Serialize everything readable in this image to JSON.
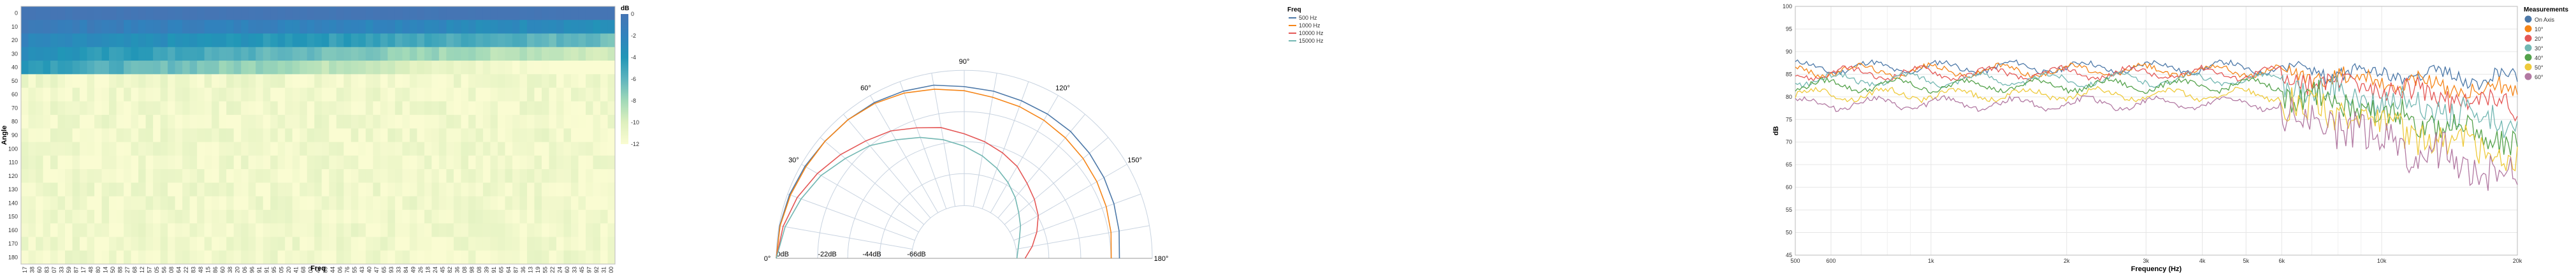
{
  "heatmap": {
    "type": "heatmap",
    "xlabel": "Freq",
    "ylabel": "Angle",
    "legend_title": "dB",
    "angles": [
      0,
      10,
      20,
      30,
      40,
      50,
      60,
      70,
      80,
      90,
      100,
      110,
      120,
      130,
      140,
      150,
      160,
      170,
      180
    ],
    "color_scale": {
      "domain": [
        -12,
        0
      ],
      "ticks": [
        0,
        -2,
        -4,
        -6,
        -8,
        -10,
        -12
      ]
    },
    "freqs": [
      "417",
      "438",
      "460",
      "483",
      "507",
      "533",
      "559",
      "587",
      "617",
      "648",
      "680",
      "714",
      "750",
      "788",
      "827",
      "868",
      "912",
      "957",
      "1005",
      "1056",
      "1108",
      "1164",
      "1222",
      "1283",
      "1348",
      "1415",
      "1486",
      "1560",
      "1638",
      "1720",
      "1806",
      "1896",
      "1991",
      "2091",
      "2195",
      "2305",
      "2420",
      "2541",
      "2668",
      "2802",
      "2942",
      "3089",
      "3244",
      "3406",
      "3576",
      "3755",
      "3943",
      "4140",
      "4347",
      "4565",
      "4793",
      "5033",
      "5284",
      "5549",
      "5826",
      "6118",
      "6424",
      "6745",
      "7082",
      "7436",
      "7808",
      "8198",
      "8608",
      "9039",
      "9491",
      "9965",
      "10464",
      "10987",
      "11536",
      "12113",
      "12719",
      "13355",
      "14022",
      "14724",
      "15460",
      "16233",
      "17045",
      "17897",
      "18792",
      "19731",
      "20000"
    ]
  },
  "polar": {
    "type": "polar-line",
    "legend_title": "Freq",
    "angle_labels": [
      "0°",
      "30°",
      "60°",
      "90°",
      "120°",
      "150°",
      "180°"
    ],
    "radius_labels": [
      "0dB",
      "-22dB",
      "-44dB",
      "-66dB"
    ],
    "angles_deg": [
      0,
      10,
      20,
      30,
      40,
      50,
      60,
      70,
      80,
      90,
      100,
      110,
      120,
      130,
      140,
      150,
      160,
      170,
      180
    ],
    "series": [
      {
        "name": "500 Hz",
        "color": "#4c78a8",
        "db": [
          0,
          -0.3,
          -1,
          -2,
          -3,
          -3.5,
          -4,
          -5,
          -6,
          -8,
          -9,
          -10,
          -10.5,
          -11,
          -12,
          -13,
          -14,
          -15,
          -16
        ]
      },
      {
        "name": "1000 Hz",
        "color": "#f58518",
        "db": [
          0,
          -0.5,
          -1.5,
          -2.5,
          -3,
          -3.5,
          -4.5,
          -6,
          -8,
          -10,
          -12,
          -13,
          -14,
          -15,
          -16,
          -17,
          -18,
          -19,
          -20
        ]
      },
      {
        "name": "10000 Hz",
        "color": "#e45756",
        "db": [
          0,
          -2,
          -5,
          -9,
          -13,
          -17,
          -20,
          -24,
          -27,
          -31,
          -34,
          -37,
          -40,
          -44,
          -47,
          -50,
          -54,
          -58,
          -62
        ]
      },
      {
        "name": "15000 Hz",
        "color": "#72b7b2",
        "db": [
          0,
          -3,
          -7,
          -11,
          -16,
          -20,
          -25,
          -29,
          -33,
          -37,
          -41,
          -45,
          -49,
          -53,
          -57,
          -60,
          -63,
          -65,
          -66
        ]
      }
    ]
  },
  "frequency": {
    "type": "line",
    "xlabel": "Frequency (Hz)",
    "ylabel": "dB",
    "xscale": "log",
    "xlim": [
      500,
      20000
    ],
    "ylim": [
      45,
      100
    ],
    "x_ticks": [
      "500",
      "600",
      "1k",
      "2k",
      "3k",
      "4k",
      "5k",
      "6k",
      "10k",
      "20k"
    ],
    "y_ticks": [
      45,
      50,
      55,
      60,
      65,
      70,
      75,
      80,
      85,
      90,
      95,
      100
    ],
    "legend_title": "Measurements",
    "series": [
      {
        "name": "On Axis",
        "color": "#4c78a8",
        "base": 86.5
      },
      {
        "name": "10°",
        "color": "#f58518",
        "base": 85.8
      },
      {
        "name": "20°",
        "color": "#e45756",
        "base": 85.2
      },
      {
        "name": "30°",
        "color": "#72b7b2",
        "base": 83.8
      },
      {
        "name": "40°",
        "color": "#54a24b",
        "base": 82.5
      },
      {
        "name": "50°",
        "color": "#eeca3b",
        "base": 80.5
      },
      {
        "name": "60°",
        "color": "#b279a2",
        "base": 78.5
      }
    ]
  }
}
